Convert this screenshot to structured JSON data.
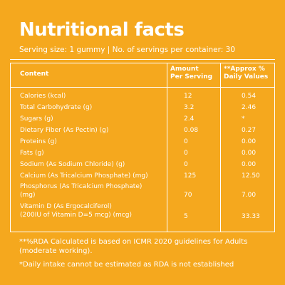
{
  "title": "Nutritional facts",
  "serving": "Serving size: 1 gummy  |  No. of servings per container: 30",
  "table": {
    "headers": {
      "content": "Content",
      "amount_line1": "Amount",
      "amount_line2": "Per Serving",
      "rda_line1": "**Approx %",
      "rda_line2": "Daily Values"
    },
    "rows": [
      {
        "name": [
          "Calories (kcal)"
        ],
        "amount": "12",
        "rda": "0.54"
      },
      {
        "name": [
          "Total Carbohydrate (g)"
        ],
        "amount": "3.2",
        "rda": "2.46"
      },
      {
        "name": [
          "Sugars (g)"
        ],
        "amount": "2.4",
        "rda": "*"
      },
      {
        "name": [
          "Dietary Fiber (As Pectin) (g)"
        ],
        "amount": "0.08",
        "rda": "0.27"
      },
      {
        "name": [
          "Proteins (g)"
        ],
        "amount": "0",
        "rda": "0.00"
      },
      {
        "name": [
          "Fats (g)"
        ],
        "amount": "0",
        "rda": "0.00"
      },
      {
        "name": [
          "Sodium (As Sodium Chloride) (g)"
        ],
        "amount": "0",
        "rda": "0.00"
      },
      {
        "name": [
          "Calcium (As Tricalcium Phosphate) (mg)"
        ],
        "amount": "125",
        "rda": "12.50"
      },
      {
        "name": [
          "Phosphorus (As Tricalcium Phosphate)",
          "(mg)"
        ],
        "amount": "70",
        "rda": "7.00"
      },
      {
        "name": [
          "Vitamin D (As Ergocalciferol)",
          "(200IU of Vitamin D=5 mcg) (mcg)"
        ],
        "amount": "5",
        "rda": "33.33"
      }
    ]
  },
  "notes": [
    "**%RDA Calculated is based on ICMR 2020 guidelines for Adults (moderate working).",
    "*Daily intake cannot be estimated as RDA is not established"
  ],
  "colors": {
    "background": "#F5A81E",
    "text": "#FFFFFF"
  }
}
